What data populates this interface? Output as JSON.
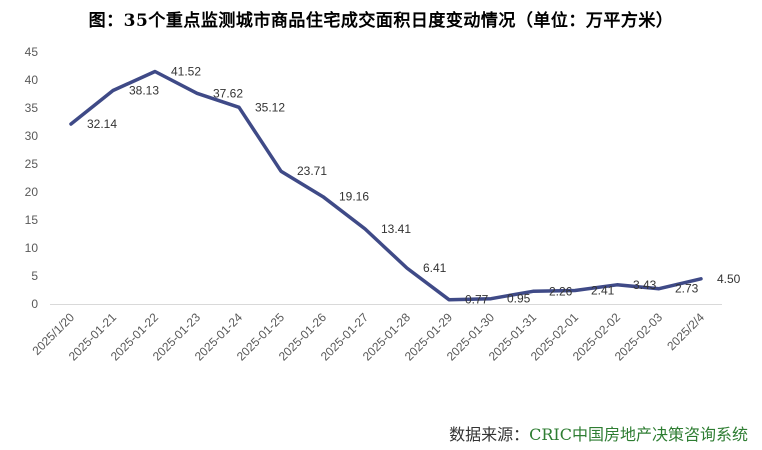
{
  "chart_data": {
    "type": "line",
    "title": "图：35个重点监测城市商品住宅成交面积日度变动情况（单位：万平方米）",
    "categories": [
      "2025/1/20",
      "2025-01-21",
      "2025-01-22",
      "2025-01-23",
      "2025-01-24",
      "2025-01-25",
      "2025-01-26",
      "2025-01-27",
      "2025-01-28",
      "2025-01-29",
      "2025-01-30",
      "2025-01-31",
      "2025-02-01",
      "2025-02-02",
      "2025-02-03",
      "2025/2/4"
    ],
    "series": [
      {
        "name": "商品住宅成交面积",
        "values": [
          32.14,
          38.13,
          41.52,
          37.62,
          35.12,
          23.71,
          19.16,
          13.41,
          6.41,
          0.77,
          0.95,
          2.26,
          2.41,
          3.43,
          2.73,
          4.5
        ],
        "labels": [
          "32.14",
          "38.13",
          "41.52",
          "37.62",
          "35.12",
          "23.71",
          "19.16",
          "13.41",
          "6.41",
          "0.77",
          "0.95",
          "2.26",
          "2.41",
          "3.43",
          "2.73",
          "4.50"
        ]
      }
    ],
    "yticks": [
      "0",
      "5",
      "10",
      "15",
      "20",
      "25",
      "30",
      "35",
      "40",
      "45"
    ],
    "ylim": [
      0,
      45
    ],
    "xlabel": "",
    "ylabel": "",
    "grid": false,
    "line_color": "#3f4a87"
  },
  "source": {
    "label": "数据来源：",
    "name": "CRIC中国房地产决策咨询系统"
  }
}
